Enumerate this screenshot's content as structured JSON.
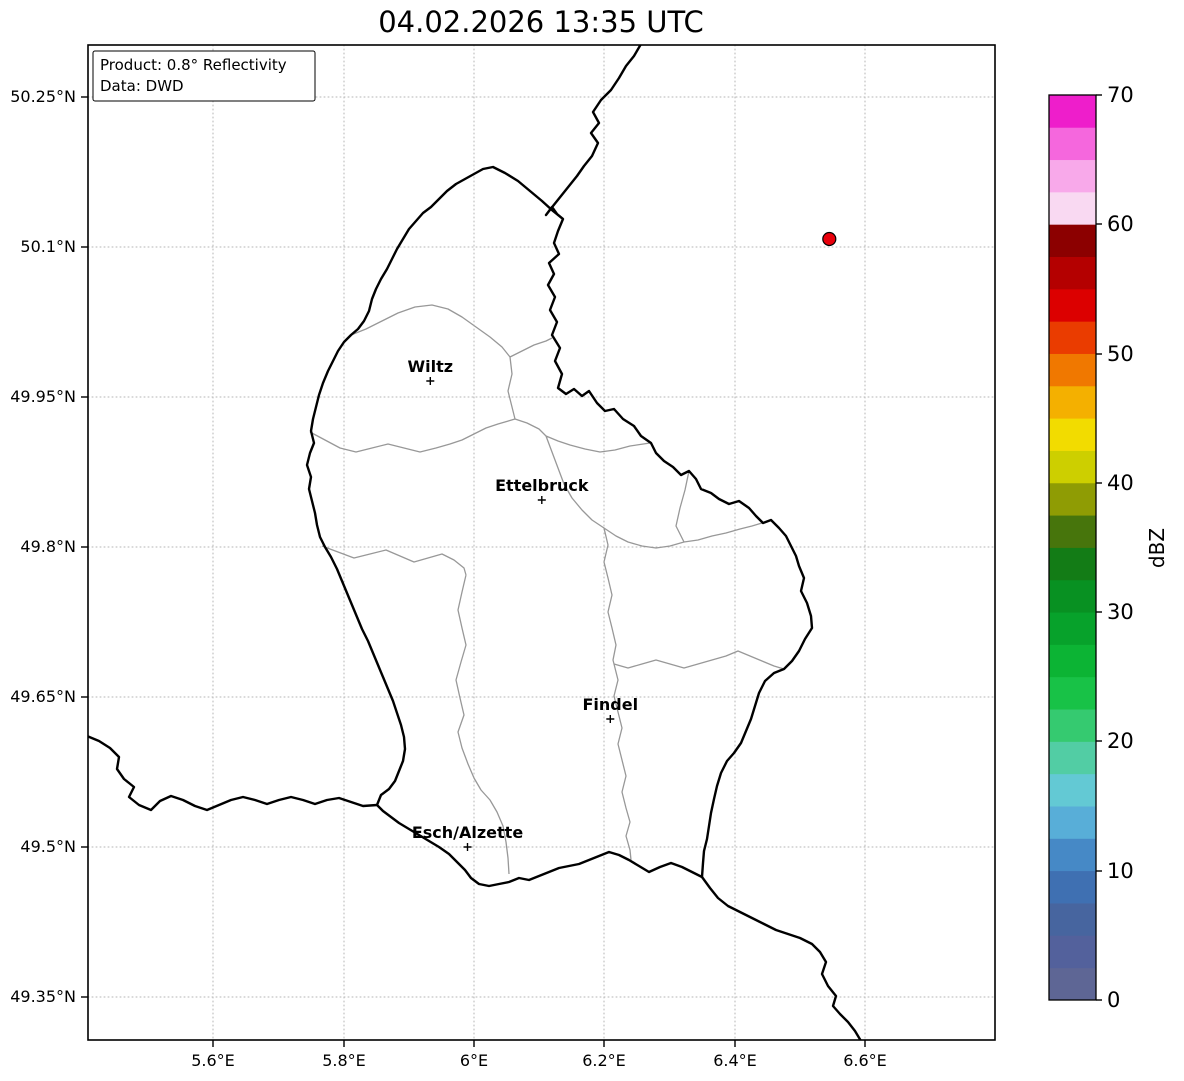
{
  "title": "04.02.2026 13:35 UTC",
  "info_box": {
    "product": "Product: 0.8° Reflectivity",
    "source": "Data: DWD"
  },
  "axes": {
    "y_tick_labels": [
      "50.25°N",
      "50.1°N",
      "49.95°N",
      "49.8°N",
      "49.65°N",
      "49.5°N",
      "49.35°N"
    ],
    "x_tick_labels": [
      "5.6°E",
      "5.8°E",
      "6°E",
      "6.2°E",
      "6.4°E",
      "6.6°E"
    ]
  },
  "extent": {
    "lon_min": 5.41,
    "lon_max": 6.8,
    "lat_min": 49.31,
    "lat_max": 50.3
  },
  "cities": [
    {
      "name": "Wiltz",
      "lon": 5.933,
      "lat": 49.966
    },
    {
      "name": "Ettelbruck",
      "lon": 6.104,
      "lat": 49.847
    },
    {
      "name": "Findel",
      "lon": 6.209,
      "lat": 49.628
    },
    {
      "name": "Esch/Alzette",
      "lon": 5.99,
      "lat": 49.5
    }
  ],
  "radar_points": [
    {
      "lon": 6.545,
      "lat": 50.108,
      "fill": "#e8000b",
      "edge": "#000000"
    }
  ],
  "colorbar": {
    "label": "dBZ",
    "min": 0,
    "max": 70,
    "tick_labels": [
      "0",
      "10",
      "20",
      "30",
      "40",
      "50",
      "60",
      "70"
    ],
    "colors": [
      "#5e6695",
      "#53619c",
      "#47659f",
      "#3f70b2",
      "#4689c6",
      "#58aed8",
      "#63c9d4",
      "#52cda4",
      "#35ca70",
      "#18c247",
      "#0cb434",
      "#07a22b",
      "#089122",
      "#137c16",
      "#47750c",
      "#8f9c04",
      "#cdcf00",
      "#f2dc00",
      "#f4b000",
      "#f07800",
      "#ea3c00",
      "#dc0000",
      "#b40000",
      "#8c0000",
      "#f9d9f2",
      "#f8a9ea",
      "#f567dd",
      "#ee1ecb"
    ]
  }
}
